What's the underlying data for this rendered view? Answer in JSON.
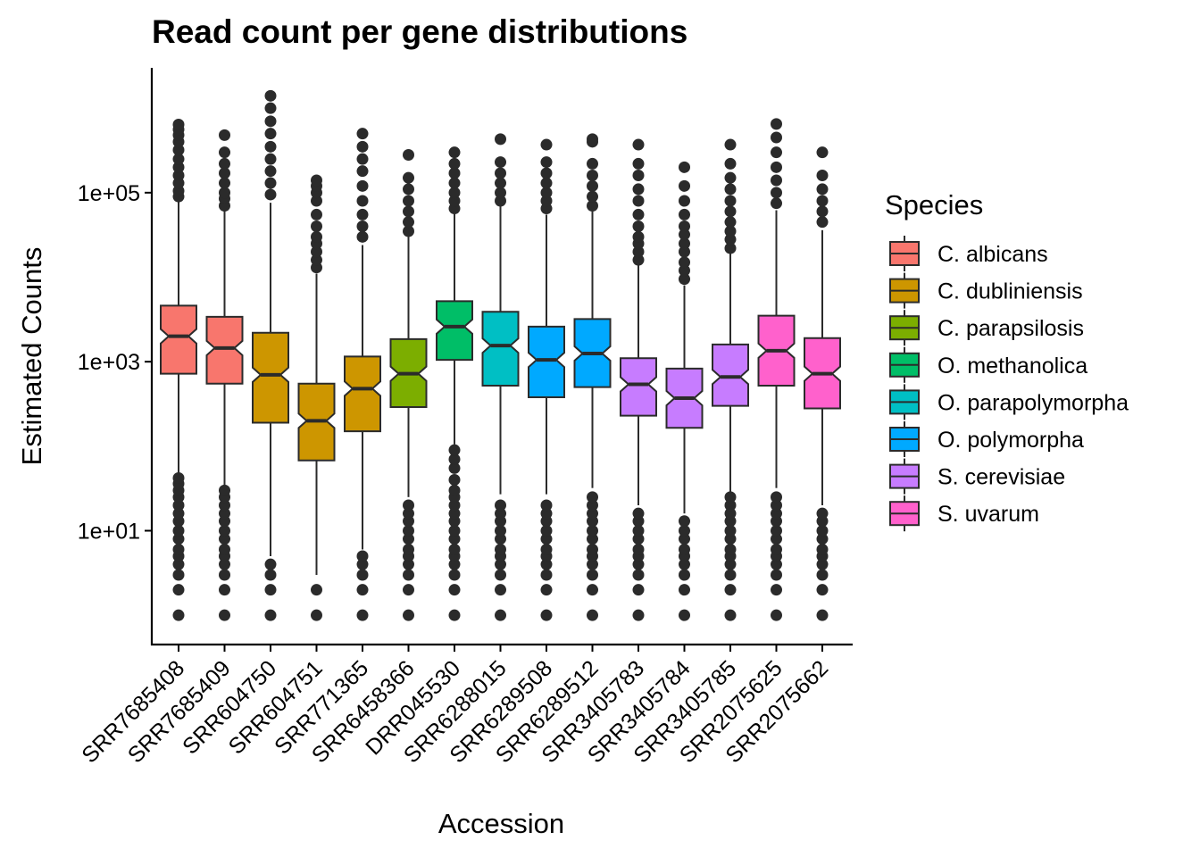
{
  "chart_data": {
    "type": "boxplot",
    "title": "Read count per gene distributions",
    "xlabel": "Accession",
    "ylabel": "Estimated Counts",
    "yscale": "log10",
    "ylim": [
      0.45,
      3000000
    ],
    "yticks": [
      {
        "value": 10,
        "label": "1e+01"
      },
      {
        "value": 1000,
        "label": "1e+03"
      },
      {
        "value": 100000,
        "label": "1e+05"
      }
    ],
    "legend": {
      "title": "Species",
      "position": "right"
    },
    "species": [
      {
        "name": "C. albicans",
        "color": "#F8766D"
      },
      {
        "name": "C. dubliniensis",
        "color": "#CD9600"
      },
      {
        "name": "C. parapsilosis",
        "color": "#7CAE00"
      },
      {
        "name": "O. methanolica",
        "color": "#00BE67"
      },
      {
        "name": "O. parapolymorpha",
        "color": "#00BFC4"
      },
      {
        "name": "O. polymorpha",
        "color": "#00A9FF"
      },
      {
        "name": "S. cerevisiae",
        "color": "#C77CFF"
      },
      {
        "name": "S. uvarum",
        "color": "#FF61CC"
      }
    ],
    "categories": [
      {
        "accession": "SRR7685408",
        "species": "C. albicans",
        "q1": 720,
        "median": 2000,
        "q3": 4600,
        "whisker_low": 48,
        "whisker_high": 78000,
        "outlier_low": [
          1,
          2,
          3,
          4,
          5,
          6,
          8,
          10,
          13,
          16,
          20,
          25,
          30,
          36,
          42
        ],
        "outlier_high": [
          90000,
          105000,
          130000,
          160000,
          200000,
          250000,
          320000,
          400000,
          480000,
          560000,
          640000
        ]
      },
      {
        "accession": "SRR7685409",
        "species": "C. albicans",
        "q1": 550,
        "median": 1450,
        "q3": 3400,
        "whisker_low": 33,
        "whisker_high": 62000,
        "outlier_low": [
          1,
          2,
          3,
          4,
          5,
          6,
          8,
          10,
          13,
          16,
          20,
          25,
          30
        ],
        "outlier_high": [
          70000,
          85000,
          100000,
          130000,
          170000,
          220000,
          300000,
          480000
        ]
      },
      {
        "accession": "SRR604750",
        "species": "C. dubliniensis",
        "q1": 190,
        "median": 700,
        "q3": 2200,
        "whisker_low": 5,
        "whisker_high": 76000,
        "outlier_low": [
          1,
          2,
          3,
          4
        ],
        "outlier_high": [
          95000,
          130000,
          180000,
          250000,
          350000,
          500000,
          700000,
          1000000,
          1400000
        ]
      },
      {
        "accession": "SRR604751",
        "species": "C. dubliniensis",
        "q1": 68,
        "median": 200,
        "q3": 550,
        "whisker_low": 3,
        "whisker_high": 11000,
        "outlier_low": [
          1,
          2
        ],
        "outlier_high": [
          13000,
          16000,
          20000,
          25000,
          30000,
          40000,
          55000,
          80000,
          100000,
          120000,
          140000
        ]
      },
      {
        "accession": "SRR771365",
        "species": "C. dubliniensis",
        "q1": 150,
        "median": 480,
        "q3": 1150,
        "whisker_low": 6,
        "whisker_high": 24000,
        "outlier_low": [
          1,
          2,
          3,
          4,
          5
        ],
        "outlier_high": [
          30000,
          40000,
          55000,
          80000,
          120000,
          180000,
          250000,
          350000,
          500000
        ]
      },
      {
        "accession": "SRR6458366",
        "species": "C. parapsilosis",
        "q1": 290,
        "median": 720,
        "q3": 1850,
        "whisker_low": 25,
        "whisker_high": 30000,
        "outlier_low": [
          1,
          2,
          3,
          4,
          5,
          6,
          8,
          10,
          13,
          16,
          20
        ],
        "outlier_high": [
          35000,
          45000,
          60000,
          80000,
          110000,
          150000,
          280000
        ]
      },
      {
        "accession": "DRR045530",
        "species": "O. methanolica",
        "q1": 1050,
        "median": 2600,
        "q3": 5200,
        "whisker_low": 105,
        "whisker_high": 57000,
        "outlier_low": [
          1,
          2,
          3,
          4,
          5,
          6,
          8,
          10,
          13,
          16,
          20,
          25,
          30,
          40,
          55,
          70,
          90
        ],
        "outlier_high": [
          65000,
          80000,
          100000,
          130000,
          170000,
          220000,
          300000
        ]
      },
      {
        "accession": "SRR6288015",
        "species": "O. parapolymorpha",
        "q1": 520,
        "median": 1550,
        "q3": 3900,
        "whisker_low": 27,
        "whisker_high": 70000,
        "outlier_low": [
          1,
          2,
          3,
          4,
          5,
          6,
          8,
          10,
          13,
          16,
          20
        ],
        "outlier_high": [
          80000,
          100000,
          130000,
          170000,
          230000,
          430000
        ]
      },
      {
        "accession": "SRR6289508",
        "species": "O. polymorpha",
        "q1": 380,
        "median": 1050,
        "q3": 2600,
        "whisker_low": 27,
        "whisker_high": 55000,
        "outlier_low": [
          1,
          2,
          3,
          4,
          5,
          6,
          8,
          10,
          13,
          16,
          20
        ],
        "outlier_high": [
          65000,
          80000,
          100000,
          130000,
          170000,
          230000,
          370000
        ]
      },
      {
        "accession": "SRR6289512",
        "species": "O. polymorpha",
        "q1": 500,
        "median": 1250,
        "q3": 3200,
        "whisker_low": 32,
        "whisker_high": 60000,
        "outlier_low": [
          1,
          2,
          3,
          4,
          5,
          6,
          8,
          10,
          13,
          16,
          20,
          25
        ],
        "outlier_high": [
          70000,
          90000,
          120000,
          160000,
          220000,
          400000,
          430000
        ]
      },
      {
        "accession": "SRR3405783",
        "species": "S. cerevisiae",
        "q1": 230,
        "median": 540,
        "q3": 1100,
        "whisker_low": 20,
        "whisker_high": 14000,
        "outlier_low": [
          1,
          2,
          3,
          4,
          5,
          6,
          8,
          10,
          13,
          16
        ],
        "outlier_high": [
          16000,
          20000,
          25000,
          30000,
          40000,
          55000,
          80000,
          110000,
          160000,
          220000,
          370000
        ]
      },
      {
        "accession": "SRR3405784",
        "species": "S. cerevisiae",
        "q1": 165,
        "median": 370,
        "q3": 830,
        "whisker_low": 16,
        "whisker_high": 8000,
        "outlier_low": [
          1,
          2,
          3,
          4,
          5,
          6,
          8,
          10,
          13
        ],
        "outlier_high": [
          9500,
          12000,
          15000,
          20000,
          25000,
          32000,
          40000,
          55000,
          80000,
          120000,
          200000
        ]
      },
      {
        "accession": "SRR3405785",
        "species": "S. cerevisiae",
        "q1": 300,
        "median": 660,
        "q3": 1600,
        "whisker_low": 28,
        "whisker_high": 19000,
        "outlier_low": [
          1,
          2,
          3,
          4,
          5,
          6,
          8,
          10,
          13,
          16,
          20,
          25
        ],
        "outlier_high": [
          22000,
          28000,
          35000,
          45000,
          60000,
          80000,
          110000,
          150000,
          220000,
          370000
        ]
      },
      {
        "accession": "SRR2075625",
        "species": "S. uvarum",
        "q1": 520,
        "median": 1350,
        "q3": 3500,
        "whisker_low": 32,
        "whisker_high": 62000,
        "outlier_low": [
          1,
          2,
          3,
          4,
          5,
          6,
          8,
          10,
          13,
          16,
          20,
          25
        ],
        "outlier_high": [
          75000,
          100000,
          140000,
          200000,
          300000,
          450000,
          650000
        ]
      },
      {
        "accession": "SRR2075662",
        "species": "S. uvarum",
        "q1": 280,
        "median": 720,
        "q3": 1900,
        "whisker_low": 20,
        "whisker_high": 36000,
        "outlier_low": [
          1,
          2,
          3,
          4,
          5,
          6,
          8,
          10,
          13,
          16
        ],
        "outlier_high": [
          45000,
          60000,
          80000,
          110000,
          160000,
          300000
        ]
      }
    ]
  }
}
